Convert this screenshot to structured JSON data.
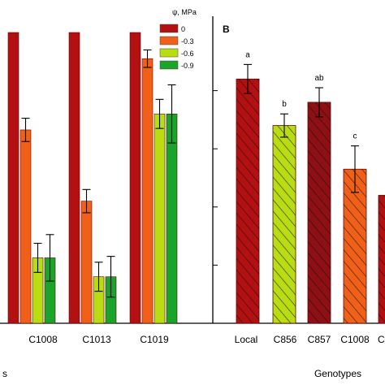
{
  "chart_data": [
    {
      "type": "bar",
      "panel": "A",
      "categories": [
        "C1008",
        "C1013",
        "C1019"
      ],
      "legend_title": "ψ, MPa",
      "legend_position": "top-right",
      "series": [
        {
          "name": "0",
          "values": [
            100,
            100,
            100
          ],
          "errors": [
            0,
            0,
            0
          ],
          "color": "#b31012"
        },
        {
          "name": "-0.3",
          "values": [
            66.5,
            42,
            91
          ],
          "errors": [
            4,
            4,
            3
          ],
          "color": "#f06018"
        },
        {
          "name": "-0.6",
          "values": [
            22.5,
            16,
            72
          ],
          "errors": [
            5,
            5,
            5
          ],
          "color": "#b9dc12"
        },
        {
          "name": "-0.9",
          "values": [
            22.5,
            16,
            72
          ],
          "errors": [
            8,
            7,
            10
          ],
          "color": "#1aa52a"
        }
      ],
      "ylim": [
        0,
        110
      ],
      "xlabel": "",
      "ylabel": ""
    },
    {
      "type": "bar",
      "panel": "B",
      "title": "B",
      "categories": [
        "Local",
        "C856",
        "C857",
        "C1008",
        "C"
      ],
      "values": [
        84,
        68,
        76,
        53,
        44
      ],
      "errors": [
        5,
        4,
        5,
        8,
        0
      ],
      "significance": [
        "a",
        "b",
        "ab",
        "c",
        ""
      ],
      "colors": [
        "#b31012",
        "#b9dc12",
        "#8e1014",
        "#f06018",
        "#b31012"
      ],
      "hatched": [
        true,
        true,
        true,
        true,
        true
      ],
      "ylim": [
        0,
        100
      ],
      "xlabel": "Genotypes",
      "ylabel": ""
    }
  ],
  "panel_a": {
    "tick_labels": [
      "C1008",
      "C1013",
      "C1019"
    ],
    "xlabel_fragment": "s"
  },
  "panel_b": {
    "label": "B",
    "tick_labels": [
      "Local",
      "C856",
      "C857",
      "C1008",
      "C"
    ],
    "xlabel": "Genotypes"
  }
}
